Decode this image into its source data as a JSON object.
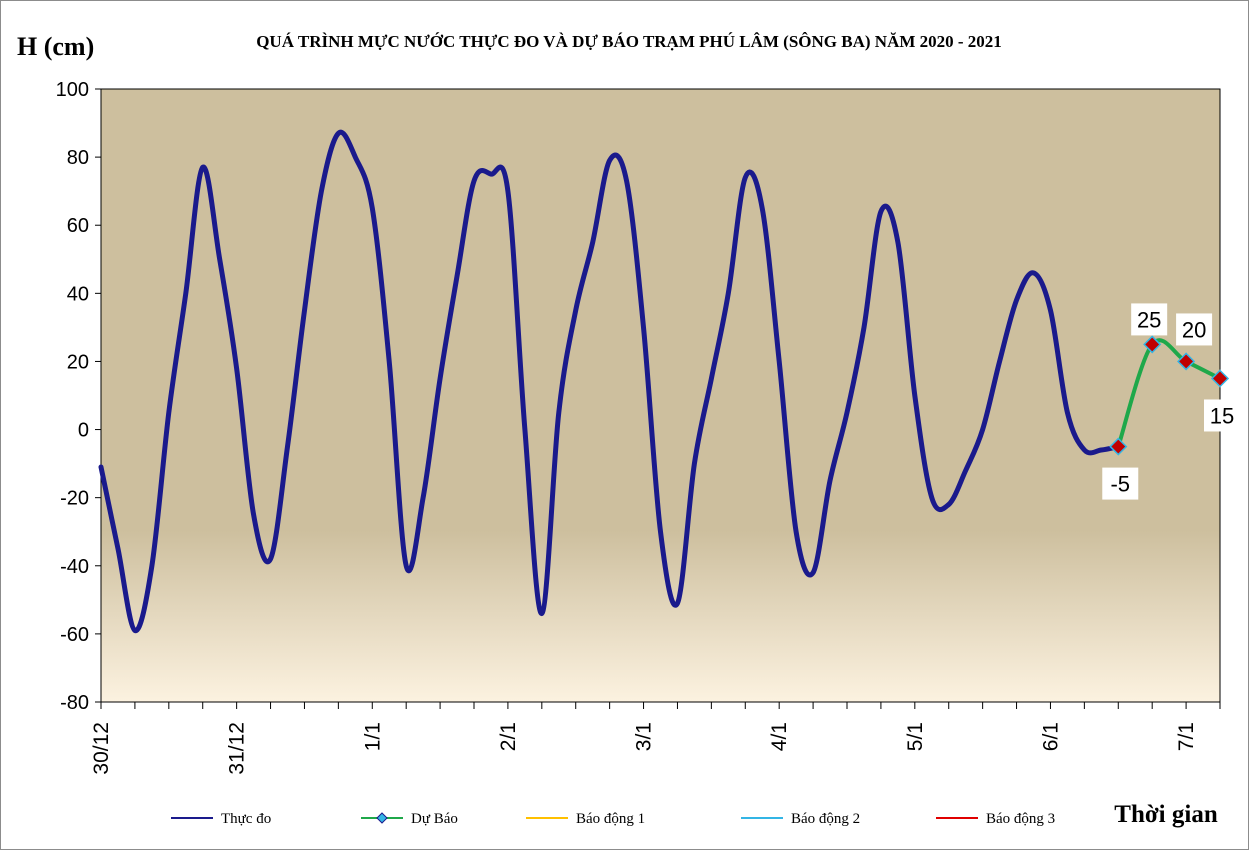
{
  "chart_data": {
    "type": "line",
    "title": "QUÁ TRÌNH MỰC NƯỚC THỰC ĐO VÀ DỰ BÁO TRẠM PHÚ LÂM (SÔNG BA) NĂM 2020 - 2021",
    "ylabel": "H (cm)",
    "xlabel": "Thời gian",
    "ylim": [
      -80,
      100
    ],
    "yticks": [
      -80,
      -60,
      -40,
      -20,
      0,
      20,
      40,
      60,
      80,
      100
    ],
    "xlim": [
      0,
      33
    ],
    "xticks": [
      {
        "x": 0,
        "label": "30/12"
      },
      {
        "x": 4,
        "label": "31/12"
      },
      {
        "x": 8,
        "label": "1/1"
      },
      {
        "x": 12,
        "label": "2/1"
      },
      {
        "x": 16,
        "label": "3/1"
      },
      {
        "x": 20,
        "label": "4/1"
      },
      {
        "x": 24,
        "label": "5/1"
      },
      {
        "x": 28,
        "label": "6/1"
      },
      {
        "x": 32,
        "label": "7/1"
      }
    ],
    "grid": false,
    "legend_position": "bottom",
    "series": [
      {
        "name": "Thực đo",
        "color": "#1a1a8c",
        "marker": "none",
        "points": [
          [
            0,
            -11
          ],
          [
            0.5,
            -35
          ],
          [
            1,
            -59
          ],
          [
            1.5,
            -40
          ],
          [
            2,
            5
          ],
          [
            2.5,
            40
          ],
          [
            3,
            77
          ],
          [
            3.5,
            50
          ],
          [
            4,
            18
          ],
          [
            4.5,
            -25
          ],
          [
            5,
            -38
          ],
          [
            5.5,
            -5
          ],
          [
            6,
            35
          ],
          [
            6.5,
            70
          ],
          [
            7,
            87
          ],
          [
            7.5,
            80
          ],
          [
            8,
            65
          ],
          [
            8.5,
            20
          ],
          [
            9,
            -40
          ],
          [
            9.5,
            -20
          ],
          [
            10,
            15
          ],
          [
            10.5,
            45
          ],
          [
            11,
            73
          ],
          [
            11.5,
            75
          ],
          [
            12,
            70
          ],
          [
            12.5,
            0
          ],
          [
            13,
            -54
          ],
          [
            13.5,
            5
          ],
          [
            14,
            35
          ],
          [
            14.5,
            55
          ],
          [
            15,
            79
          ],
          [
            15.5,
            73
          ],
          [
            16,
            30
          ],
          [
            16.5,
            -30
          ],
          [
            17,
            -51
          ],
          [
            17.5,
            -10
          ],
          [
            18,
            15
          ],
          [
            18.5,
            40
          ],
          [
            19,
            74
          ],
          [
            19.5,
            65
          ],
          [
            20,
            20
          ],
          [
            20.5,
            -30
          ],
          [
            21,
            -42
          ],
          [
            21.5,
            -15
          ],
          [
            22,
            5
          ],
          [
            22.5,
            30
          ],
          [
            23,
            64
          ],
          [
            23.5,
            55
          ],
          [
            24,
            10
          ],
          [
            24.5,
            -20
          ],
          [
            25,
            -22
          ],
          [
            25.5,
            -12
          ],
          [
            26,
            0
          ],
          [
            26.5,
            20
          ],
          [
            27,
            38
          ],
          [
            27.5,
            46
          ],
          [
            28,
            35
          ],
          [
            28.5,
            5
          ],
          [
            29,
            -6
          ],
          [
            29.5,
            -6
          ],
          [
            30,
            -5
          ]
        ]
      },
      {
        "name": "Dự Báo",
        "color": "#1fa84a",
        "marker": "diamond",
        "marker_color": "#c00000",
        "points": [
          [
            30,
            -5
          ],
          [
            31,
            25
          ],
          [
            32,
            20
          ],
          [
            33,
            15
          ]
        ]
      },
      {
        "name": "Báo động 1",
        "color": "#ffc000",
        "points": []
      },
      {
        "name": "Báo động 2",
        "color": "#33b5e5",
        "points": []
      },
      {
        "name": "Báo động 3",
        "color": "#e00000",
        "points": []
      }
    ],
    "data_labels": [
      {
        "x": 30,
        "y": -5,
        "text": "-5",
        "position": "below"
      },
      {
        "x": 31,
        "y": 25,
        "text": "25",
        "position": "above"
      },
      {
        "x": 32,
        "y": 20,
        "text": "20",
        "position": "above-right"
      },
      {
        "x": 33,
        "y": 15,
        "text": "15",
        "position": "below"
      }
    ],
    "plot_background": [
      "#cdbf9e",
      "#cdbf9e",
      "#fcf2e0"
    ]
  }
}
